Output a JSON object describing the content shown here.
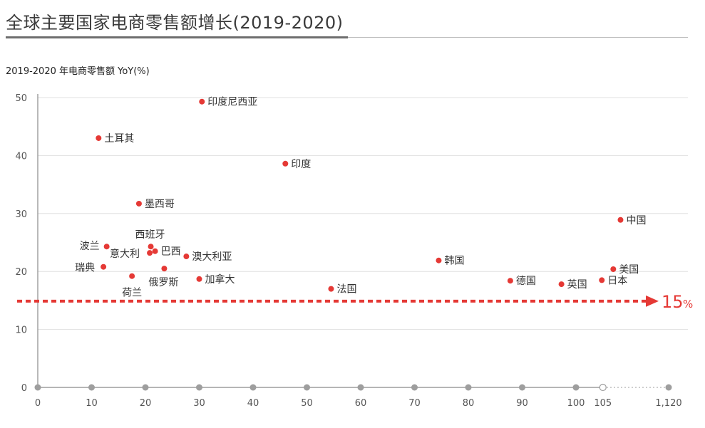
{
  "title": "全球主要国家电商零售额增长(2019-2020)",
  "chart_data": {
    "type": "scatter",
    "title": "全球主要国家电商零售额增长(2019-2020)",
    "ylabel": "2019-2020 年电商零售额 YoY(%)",
    "xlabel": "",
    "ylim": [
      0,
      50
    ],
    "y_ticks": [
      "0",
      "10",
      "20",
      "30",
      "40",
      "50"
    ],
    "x_ticks": [
      {
        "value": 0,
        "label": "0"
      },
      {
        "value": 10,
        "label": "10"
      },
      {
        "value": 20,
        "label": "20"
      },
      {
        "value": 30,
        "label": "30"
      },
      {
        "value": 40,
        "label": "40"
      },
      {
        "value": 50,
        "label": "50"
      },
      {
        "value": 60,
        "label": "60"
      },
      {
        "value": 70,
        "label": "70"
      },
      {
        "value": 80,
        "label": "80"
      },
      {
        "value": 90,
        "label": "90"
      },
      {
        "value": 100,
        "label": "100"
      },
      {
        "value": 105,
        "label": "105"
      },
      {
        "value": 1120,
        "label": "1,120"
      }
    ],
    "axis_break": {
      "from": 105,
      "to": 1120
    },
    "grid": true,
    "threshold": {
      "value": 15,
      "label": "15",
      "unit": "%"
    },
    "colors": {
      "point": "#e53935",
      "threshold": "#e53935",
      "axis_dot": "#9e9e9e",
      "grid": "#e0e0e0"
    },
    "points": [
      {
        "name": "印度尼西亚",
        "x": 30.5,
        "y": 49.3
      },
      {
        "name": "土耳其",
        "x": 11.3,
        "y": 43.0
      },
      {
        "name": "印度",
        "x": 46.0,
        "y": 38.6
      },
      {
        "name": "墨西哥",
        "x": 18.8,
        "y": 31.7
      },
      {
        "name": "中国",
        "x": 375,
        "y": 28.9
      },
      {
        "name": "西班牙",
        "x": 21.0,
        "y": 24.3
      },
      {
        "name": "波兰",
        "x": 12.8,
        "y": 24.3
      },
      {
        "name": "巴西",
        "x": 21.8,
        "y": 23.5
      },
      {
        "name": "意大利",
        "x": 20.8,
        "y": 23.2
      },
      {
        "name": "澳大利亚",
        "x": 27.6,
        "y": 22.6
      },
      {
        "name": "韩国",
        "x": 74.5,
        "y": 21.9
      },
      {
        "name": "瑞典",
        "x": 12.2,
        "y": 20.8
      },
      {
        "name": "俄罗斯",
        "x": 23.5,
        "y": 20.5
      },
      {
        "name": "美国",
        "x": 263,
        "y": 20.4
      },
      {
        "name": "荷兰",
        "x": 17.5,
        "y": 19.2
      },
      {
        "name": "加拿大",
        "x": 30.0,
        "y": 18.7
      },
      {
        "name": "日本",
        "x": 104.8,
        "y": 18.5
      },
      {
        "name": "德国",
        "x": 87.8,
        "y": 18.4
      },
      {
        "name": "英国",
        "x": 97.3,
        "y": 17.8
      },
      {
        "name": "法国",
        "x": 54.5,
        "y": 17.0
      }
    ]
  }
}
